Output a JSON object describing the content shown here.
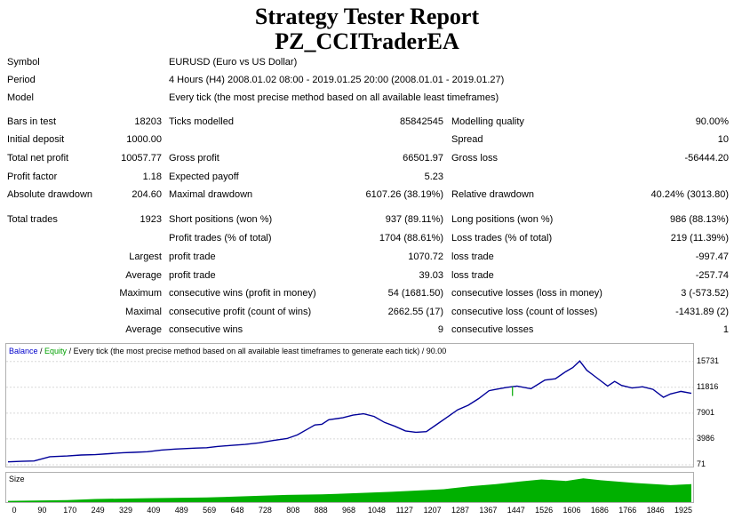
{
  "header": {
    "title": "Strategy Tester Report",
    "ea_name": "PZ_CCITraderEA"
  },
  "info": [
    {
      "label": "Symbol",
      "value": "EURUSD (Euro vs US Dollar)"
    },
    {
      "label": "Period",
      "value": "4 Hours (H4) 2008.01.02 08:00 - 2019.01.25 20:00 (2008.01.01 - 2019.01.27)"
    },
    {
      "label": "Model",
      "value": "Every tick (the most precise method based on all available least timeframes)"
    }
  ],
  "stats": {
    "bars_in_test": {
      "label": "Bars in test",
      "value": "18203"
    },
    "ticks_modelled": {
      "label": "Ticks modelled",
      "value": "85842545"
    },
    "modelling_quality": {
      "label": "Modelling quality",
      "value": "90.00%"
    },
    "initial_deposit": {
      "label": "Initial deposit",
      "value": "1000.00"
    },
    "spread": {
      "label": "Spread",
      "value": "10"
    },
    "total_net_profit": {
      "label": "Total net profit",
      "value": "10057.77"
    },
    "gross_profit": {
      "label": "Gross profit",
      "value": "66501.97"
    },
    "gross_loss": {
      "label": "Gross loss",
      "value": "-56444.20"
    },
    "profit_factor": {
      "label": "Profit factor",
      "value": "1.18"
    },
    "expected_payoff": {
      "label": "Expected payoff",
      "value": "5.23"
    },
    "absolute_drawdown": {
      "label": "Absolute drawdown",
      "value": "204.60"
    },
    "maximal_drawdown": {
      "label": "Maximal drawdown",
      "value": "6107.26 (38.19%)"
    },
    "relative_drawdown": {
      "label": "Relative drawdown",
      "value": "40.24% (3013.80)"
    },
    "total_trades": {
      "label": "Total trades",
      "value": "1923"
    },
    "short_positions": {
      "label": "Short positions (won %)",
      "value": "937 (89.11%)"
    },
    "long_positions": {
      "label": "Long positions (won %)",
      "value": "986 (88.13%)"
    },
    "profit_trades": {
      "label": "Profit trades (% of total)",
      "value": "1704 (88.61%)"
    },
    "loss_trades": {
      "label": "Loss trades (% of total)",
      "value": "219 (11.39%)"
    },
    "largest_label": "Largest",
    "largest_profit": {
      "label": "profit trade",
      "value": "1070.72"
    },
    "largest_loss": {
      "label": "loss trade",
      "value": "-997.47"
    },
    "average_label": "Average",
    "average_profit": {
      "label": "profit trade",
      "value": "39.03"
    },
    "average_loss": {
      "label": "loss trade",
      "value": "-257.74"
    },
    "maximum_label": "Maximum",
    "max_consec_wins": {
      "label": "consecutive wins (profit in money)",
      "value": "54 (1681.50)"
    },
    "max_consec_losses": {
      "label": "consecutive losses (loss in money)",
      "value": "3 (-573.52)"
    },
    "maximal_label": "Maximal",
    "maximal_consec_profit": {
      "label": "consecutive profit (count of wins)",
      "value": "2662.55 (17)"
    },
    "maximal_consec_loss": {
      "label": "consecutive loss (count of losses)",
      "value": "-1431.89 (2)"
    },
    "average2_label": "Average",
    "avg_consec_wins": {
      "label": "consecutive wins",
      "value": "9"
    },
    "avg_consec_losses": {
      "label": "consecutive losses",
      "value": "1"
    }
  },
  "chart_data": {
    "type": "line",
    "header": {
      "balance": "Balance",
      "sep": " / ",
      "equity": "Equity",
      "rest": " / Every tick (the most precise method based on all available least timeframes to generate each tick) / 90.00"
    },
    "size_label": "Size",
    "y_ticks": [
      "15731",
      "11816",
      "7901",
      "3986",
      "71"
    ],
    "y_tick_values": [
      15731,
      11816,
      7901,
      3986,
      71
    ],
    "x_ticks": [
      "0",
      "90",
      "170",
      "249",
      "329",
      "409",
      "489",
      "569",
      "648",
      "728",
      "808",
      "888",
      "968",
      "1048",
      "1127",
      "1207",
      "1287",
      "1367",
      "1447",
      "1526",
      "1606",
      "1686",
      "1766",
      "1846",
      "1925"
    ],
    "xlim": [
      0,
      1960
    ],
    "ylim": [
      71,
      16500
    ],
    "colors": {
      "balance": "#000099",
      "equity": "#00aa00",
      "size": "#00b000"
    },
    "balance_series": {
      "x": [
        0,
        40,
        75,
        120,
        170,
        210,
        250,
        290,
        330,
        360,
        400,
        440,
        480,
        520,
        540,
        570,
        600,
        640,
        680,
        720,
        760,
        800,
        830,
        860,
        880,
        900,
        920,
        960,
        990,
        1020,
        1050,
        1080,
        1110,
        1140,
        1170,
        1200,
        1230,
        1260,
        1290,
        1320,
        1350,
        1380,
        1400,
        1430,
        1460,
        1500,
        1540,
        1570,
        1600,
        1620,
        1640,
        1660,
        1680,
        1700,
        1720,
        1740,
        1760,
        1790,
        1820,
        1850,
        1880,
        1900,
        1930,
        1960
      ],
      "y": [
        520,
        600,
        650,
        1300,
        1400,
        1550,
        1600,
        1750,
        1900,
        1950,
        2050,
        2300,
        2450,
        2550,
        2600,
        2650,
        2850,
        3000,
        3150,
        3400,
        3750,
        4050,
        4600,
        5500,
        6100,
        6200,
        6900,
        7200,
        7600,
        7800,
        7400,
        6500,
        5900,
        5200,
        5000,
        5100,
        6200,
        7300,
        8400,
        9100,
        10100,
        11300,
        11500,
        11800,
        12000,
        11600,
        12900,
        13100,
        14200,
        14800,
        15800,
        14400,
        13600,
        12800,
        12000,
        12700,
        12100,
        11700,
        11900,
        11500,
        10300,
        10800,
        11200,
        10900
      ]
    },
    "equity_spike": {
      "x": 1447,
      "y": 10500
    },
    "size_series": {
      "x": [
        0,
        170,
        250,
        400,
        570,
        730,
        800,
        900,
        1000,
        1100,
        1250,
        1330,
        1400,
        1470,
        1530,
        1600,
        1650,
        1700,
        1800,
        1900,
        1960
      ],
      "v": [
        0.05,
        0.08,
        0.12,
        0.15,
        0.18,
        0.25,
        0.28,
        0.3,
        0.35,
        0.4,
        0.5,
        0.62,
        0.7,
        0.8,
        0.88,
        0.82,
        0.92,
        0.85,
        0.74,
        0.66,
        0.7
      ]
    }
  }
}
